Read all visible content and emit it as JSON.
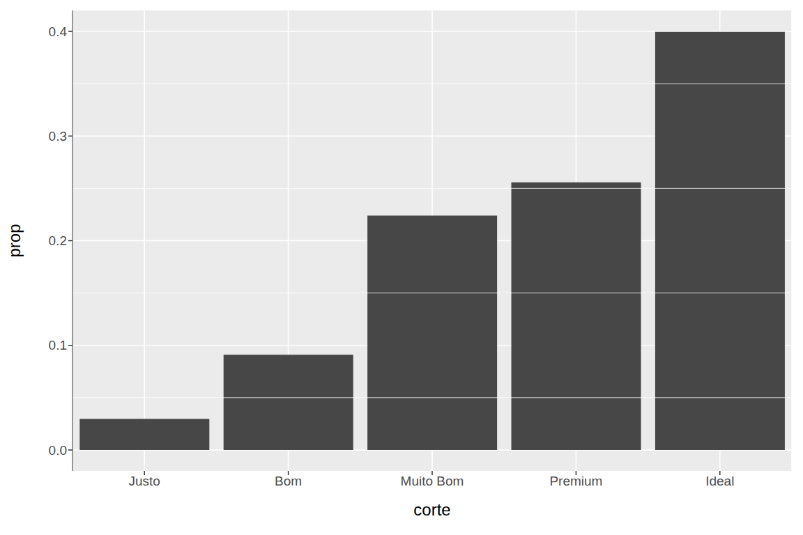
{
  "chart_data": {
    "type": "bar",
    "x_label": "corte",
    "y_label": "prop",
    "categories": [
      "Justo",
      "Bom",
      "Muito Bom",
      "Premium",
      "Ideal"
    ],
    "values": [
      0.0298,
      0.091,
      0.224,
      0.2557,
      0.3995
    ],
    "color": "#474747",
    "ylim": [
      -0.02,
      0.42
    ],
    "yticks": [
      {
        "value": 0,
        "label": "0.0"
      },
      0.1,
      0.2,
      0.3,
      0.4
    ],
    "grid": true
  }
}
